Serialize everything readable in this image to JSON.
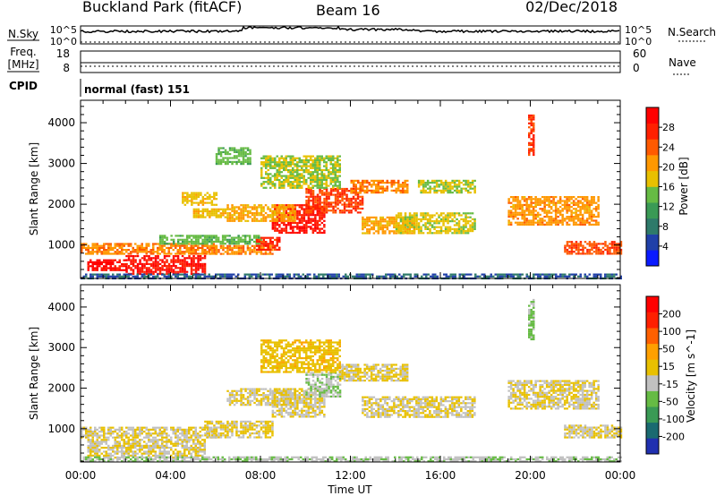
{
  "header": {
    "station": "Buckland Park (fitACF)",
    "beam": "Beam 16",
    "date": "02/Dec/2018"
  },
  "strips": {
    "nsky_label": "N.Sky",
    "nsearch_label": "N.Search",
    "noise_ticks_left": [
      "10^5",
      "10^0"
    ],
    "noise_ticks_right": [
      "10^5",
      "10^0"
    ],
    "freq_label_1": "Freq.",
    "freq_label_2": "[MHz]",
    "freq_ticks": [
      "18",
      "8"
    ],
    "nave_label": "Nave",
    "nave_ticks": [
      "60",
      "0"
    ],
    "cpid_label": "CPID",
    "cpid_value": "normal (fast) 151"
  },
  "colors": {
    "power_scale": [
      "#0a1aff",
      "#2040a8",
      "#2e7a6a",
      "#3a9a55",
      "#66bb44",
      "#e8c000",
      "#ff9800",
      "#ff5a00",
      "#ff2000",
      "#ff0000"
    ],
    "velocity_scale": [
      "#2030b0",
      "#1a6a70",
      "#3a9a55",
      "#66bb44",
      "#c0c0c0",
      "#e8c000",
      "#ffa000",
      "#ff6000",
      "#ff2000",
      "#ff0000"
    ]
  },
  "chart_data": [
    {
      "type": "heatmap",
      "title": "",
      "xlabel": "",
      "ylabel": "Slant Range [km]",
      "xlim": [
        0,
        24
      ],
      "ylim": [
        180,
        4550
      ],
      "x_ticks": [
        "00:00",
        "04:00",
        "08:00",
        "12:00",
        "16:00",
        "20:00",
        "00:00"
      ],
      "y_ticks": [
        "1000",
        "2000",
        "3000",
        "4000"
      ],
      "colorbar": {
        "label": "Power [dB]",
        "ticks": [
          "28",
          "24",
          "20",
          "16",
          "12",
          "8",
          "4"
        ],
        "range": [
          0,
          32
        ]
      },
      "features": [
        {
          "t_start": 0.0,
          "t_end": 6.0,
          "r_start": 780,
          "r_end": 1050,
          "value": 22
        },
        {
          "t_start": 0.3,
          "t_end": 2.0,
          "r_start": 380,
          "r_end": 650,
          "value": 30
        },
        {
          "t_start": 2.0,
          "t_end": 5.5,
          "r_start": 300,
          "r_end": 750,
          "value": 29
        },
        {
          "t_start": 0.0,
          "t_end": 24.0,
          "r_start": 200,
          "r_end": 300,
          "value": 6
        },
        {
          "t_start": 3.5,
          "t_end": 8.0,
          "r_start": 1050,
          "r_end": 1250,
          "value": 14
        },
        {
          "t_start": 5.5,
          "t_end": 8.5,
          "r_start": 800,
          "r_end": 1000,
          "value": 22
        },
        {
          "t_start": 7.8,
          "t_end": 8.8,
          "r_start": 900,
          "r_end": 1200,
          "value": 27
        },
        {
          "t_start": 8.5,
          "t_end": 10.8,
          "r_start": 1300,
          "r_end": 2000,
          "value": 29
        },
        {
          "t_start": 10.0,
          "t_end": 12.5,
          "r_start": 1800,
          "r_end": 2400,
          "value": 26
        },
        {
          "t_start": 12.0,
          "t_end": 14.5,
          "r_start": 2300,
          "r_end": 2600,
          "value": 22
        },
        {
          "t_start": 6.5,
          "t_end": 9.5,
          "r_start": 1600,
          "r_end": 2000,
          "value": 20
        },
        {
          "t_start": 5.0,
          "t_end": 6.5,
          "r_start": 1700,
          "r_end": 1900,
          "value": 18
        },
        {
          "t_start": 4.5,
          "t_end": 6.0,
          "r_start": 2000,
          "r_end": 2300,
          "value": 18
        },
        {
          "t_start": 8.0,
          "t_end": 11.5,
          "r_start": 2400,
          "r_end": 3200,
          "value": 16
        },
        {
          "t_start": 12.5,
          "t_end": 14.8,
          "r_start": 1300,
          "r_end": 1700,
          "value": 20
        },
        {
          "t_start": 14.0,
          "t_end": 17.5,
          "r_start": 1300,
          "r_end": 1800,
          "value": 17
        },
        {
          "t_start": 15.0,
          "t_end": 17.5,
          "r_start": 2300,
          "r_end": 2600,
          "value": 16
        },
        {
          "t_start": 19.0,
          "t_end": 23.0,
          "r_start": 1500,
          "r_end": 2200,
          "value": 21
        },
        {
          "t_start": 21.5,
          "t_end": 24.0,
          "r_start": 780,
          "r_end": 1100,
          "value": 25
        },
        {
          "t_start": 19.9,
          "t_end": 20.1,
          "r_start": 3200,
          "r_end": 4200,
          "value": 26
        },
        {
          "t_start": 6.0,
          "t_end": 7.5,
          "r_start": 3000,
          "r_end": 3400,
          "value": 14
        }
      ]
    },
    {
      "type": "heatmap",
      "title": "",
      "xlabel": "Time UT",
      "ylabel": "Slant Range [km]",
      "xlim": [
        0,
        24
      ],
      "ylim": [
        180,
        4550
      ],
      "x_ticks": [
        "00:00",
        "04:00",
        "08:00",
        "12:00",
        "16:00",
        "20:00",
        "00:00"
      ],
      "y_ticks": [
        "1000",
        "2000",
        "3000",
        "4000"
      ],
      "colorbar": {
        "label": "Velocity [m s^-1]",
        "ticks": [
          "200",
          "100",
          "50",
          "15",
          "-15",
          "-50",
          "-100",
          "-200"
        ],
        "range": [
          -250,
          250
        ]
      },
      "features": [
        {
          "t_start": 0.0,
          "t_end": 6.0,
          "r_start": 780,
          "r_end": 1050,
          "value": 0
        },
        {
          "t_start": 0.3,
          "t_end": 5.5,
          "r_start": 300,
          "r_end": 750,
          "value": 0
        },
        {
          "t_start": 0.0,
          "t_end": 24.0,
          "r_start": 200,
          "r_end": 320,
          "value": -40
        },
        {
          "t_start": 5.5,
          "t_end": 8.5,
          "r_start": 800,
          "r_end": 1200,
          "value": 5
        },
        {
          "t_start": 8.5,
          "t_end": 10.8,
          "r_start": 1300,
          "r_end": 2000,
          "value": 0
        },
        {
          "t_start": 10.0,
          "t_end": 11.5,
          "r_start": 1800,
          "r_end": 2400,
          "value": -45
        },
        {
          "t_start": 11.5,
          "t_end": 14.5,
          "r_start": 2200,
          "r_end": 2600,
          "value": 5
        },
        {
          "t_start": 6.5,
          "t_end": 9.5,
          "r_start": 1600,
          "r_end": 2000,
          "value": 0
        },
        {
          "t_start": 12.5,
          "t_end": 17.5,
          "r_start": 1300,
          "r_end": 1800,
          "value": 0
        },
        {
          "t_start": 19.0,
          "t_end": 23.0,
          "r_start": 1500,
          "r_end": 2200,
          "value": 0
        },
        {
          "t_start": 21.5,
          "t_end": 24.0,
          "r_start": 780,
          "r_end": 1100,
          "value": 0
        },
        {
          "t_start": 19.9,
          "t_end": 20.1,
          "r_start": 3200,
          "r_end": 4200,
          "value": -60
        },
        {
          "t_start": 8.0,
          "t_end": 11.5,
          "r_start": 2400,
          "r_end": 3200,
          "value": 30
        }
      ]
    }
  ]
}
